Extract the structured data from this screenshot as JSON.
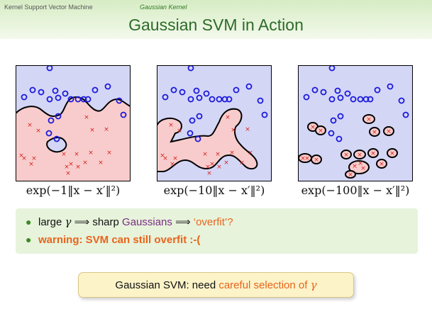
{
  "header": {
    "breadcrumb_left": "Kernel Support Vector Machine",
    "breadcrumb_right": "Gaussian Kernel",
    "title": "Gaussian SVM in Action"
  },
  "panels": [
    {
      "formula": "exp(−1‖x − x′‖²)"
    },
    {
      "formula": "exp(−10‖x − x′‖²)"
    },
    {
      "formula": "exp(−100‖x − x′‖²)"
    }
  ],
  "bullets": {
    "b1": {
      "part1": "large ",
      "gamma": "γ",
      "arrow1": " ⟹ sharp ",
      "gaussians": "Gaussians",
      "arrow2": " ⟹ ",
      "overfit": "‘overfit’?"
    },
    "b2": {
      "text": "warning: SVM can still overfit :-("
    }
  },
  "note": {
    "text": "Gaussian SVM: need ",
    "highlight": "careful selection of ",
    "gamma": "γ"
  },
  "colors": {
    "positive_region": "#d4d6f6",
    "negative_region": "#f8cccc",
    "circle": "#1a1adc",
    "cross": "#d6231e",
    "accent_green": "#2d6b2a",
    "accent_orange": "#e8641c"
  }
}
